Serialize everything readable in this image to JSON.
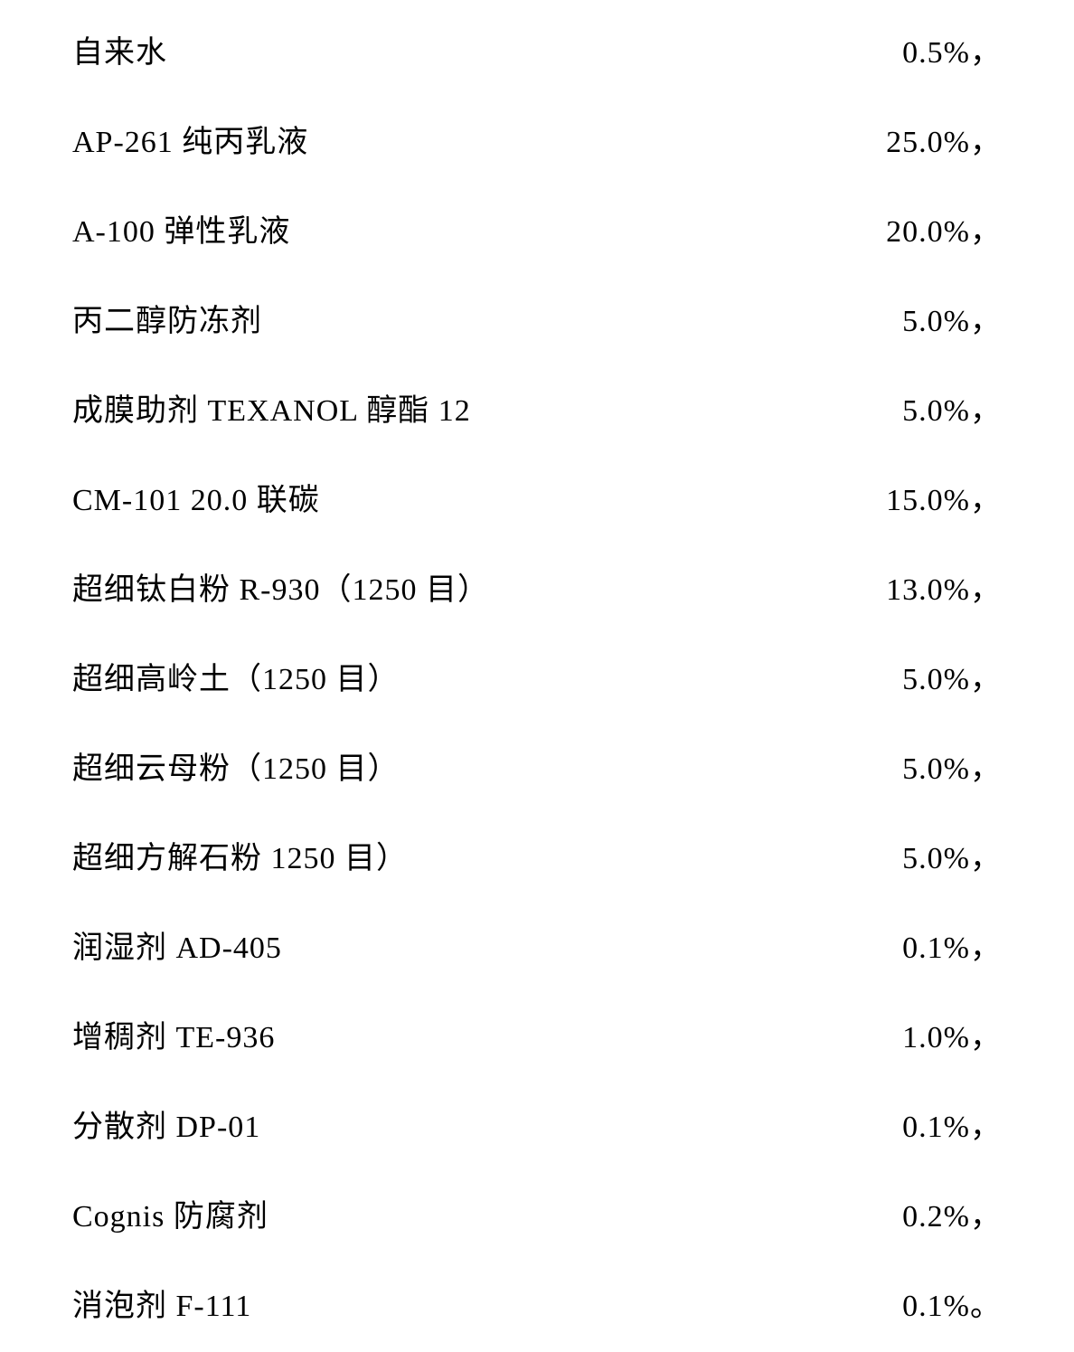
{
  "table": {
    "type": "table",
    "background_color": "#ffffff",
    "text_color": "#000000",
    "font_family": "SimSun",
    "font_size": 34,
    "row_spacing": 50,
    "rows": [
      {
        "label": "自来水",
        "value": "0.5%，"
      },
      {
        "label": "AP-261 纯丙乳液",
        "value": "25.0%，"
      },
      {
        "label": "A-100 弹性乳液",
        "value": "20.0%，"
      },
      {
        "label": "丙二醇防冻剂",
        "value": "5.0%，"
      },
      {
        "label": "成膜助剂 TEXANOL 醇酯 12",
        "value": "5.0%，"
      },
      {
        "label": "CM-101 20.0 联碳",
        "value": "15.0%，"
      },
      {
        "label": "超细钛白粉 R-930（1250 目）",
        "value": "13.0%，"
      },
      {
        "label": "超细高岭土（1250 目）",
        "value": "5.0%，"
      },
      {
        "label": "超细云母粉（1250 目）",
        "value": "5.0%，"
      },
      {
        "label": "超细方解石粉 1250 目）",
        "value": "5.0%，"
      },
      {
        "label": "润湿剂 AD-405",
        "value": "0.1%，"
      },
      {
        "label": "增稠剂 TE-936",
        "value": "1.0%，"
      },
      {
        "label": "分散剂 DP-01",
        "value": "0.1%，"
      },
      {
        "label": "Cognis 防腐剂",
        "value": "0.2%，"
      },
      {
        "label": "消泡剂 F-111",
        "value": "0.1%。"
      }
    ]
  }
}
